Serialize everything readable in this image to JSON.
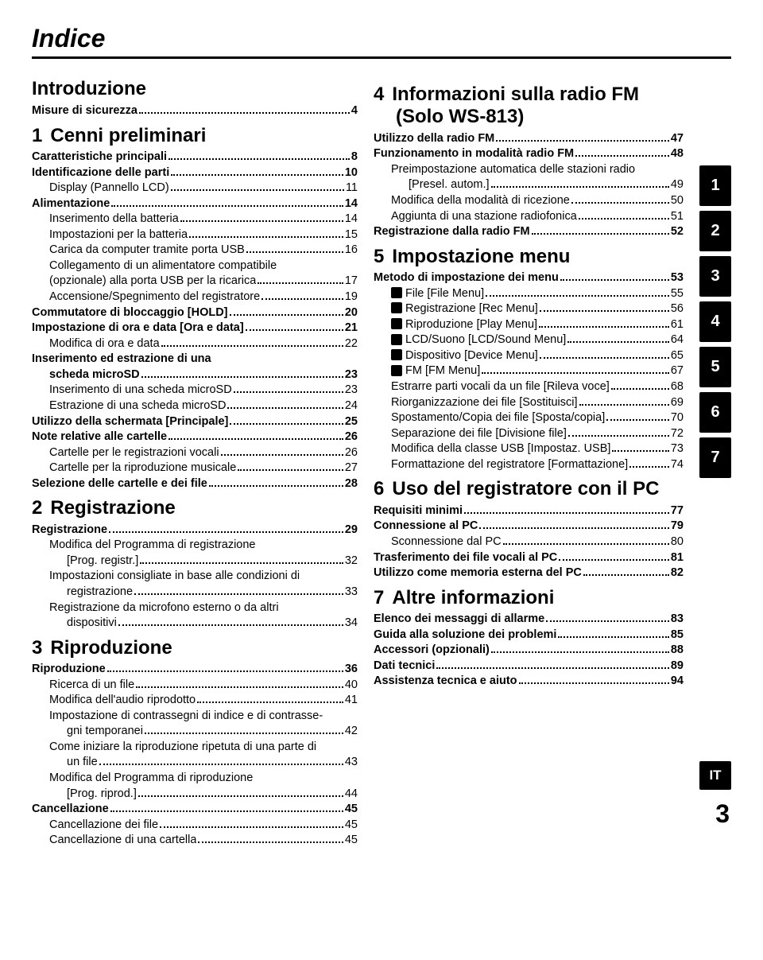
{
  "title": "Indice",
  "pageNumber": "3",
  "tabs": [
    "1",
    "2",
    "3",
    "4",
    "5",
    "6",
    "7"
  ],
  "tabIT": "IT",
  "left": {
    "intro": {
      "title": "Introduzione",
      "items": [
        {
          "label": "Misure di sicurezza",
          "page": "4",
          "bold": true,
          "indent": 1
        }
      ]
    },
    "s1": {
      "num": "1",
      "title": "Cenni preliminari",
      "items": [
        {
          "label": "Caratteristiche principali",
          "page": "8",
          "bold": true,
          "indent": 1
        },
        {
          "label": "Identificazione delle parti",
          "page": "10",
          "bold": true,
          "indent": 1
        },
        {
          "label": "Display (Pannello LCD)",
          "page": "11",
          "indent": 2
        },
        {
          "label": "Alimentazione",
          "page": "14",
          "bold": true,
          "indent": 1
        },
        {
          "label": "Inserimento della batteria",
          "page": "14",
          "indent": 2
        },
        {
          "label": "Impostazioni per la batteria",
          "page": "15",
          "indent": 2
        },
        {
          "label": "Carica da computer tramite porta USB",
          "page": "16",
          "indent": 2
        },
        {
          "multiline": true,
          "first": "Collegamento di un alimentatore compatibile",
          "second": "(opzionale) alla porta USB per la ricarica",
          "page": "17",
          "indent": 2
        },
        {
          "label": "Accensione/Spegnimento del registratore",
          "page": "19",
          "indent": 2
        },
        {
          "label": "Commutatore di bloccaggio [HOLD]",
          "page": "20",
          "bold": true,
          "indent": 1
        },
        {
          "label": "Impostazione di ora e data [Ora e data]",
          "page": "21",
          "bold": true,
          "indent": 1
        },
        {
          "label": "Modifica di ora e data",
          "page": "22",
          "indent": 2
        },
        {
          "multiline": true,
          "first": "Inserimento ed estrazione di una",
          "second": "scheda microSD",
          "page": "23",
          "bold": true,
          "indent": 1,
          "secondIndent": 2
        },
        {
          "label": "Inserimento di una scheda microSD",
          "page": "23",
          "indent": 2
        },
        {
          "label": "Estrazione di una scheda microSD",
          "page": "24",
          "indent": 2
        },
        {
          "label": "Utilizzo della schermata [Principale]",
          "page": "25",
          "bold": true,
          "indent": 1
        },
        {
          "label": "Note relative alle cartelle",
          "page": "26",
          "bold": true,
          "indent": 1
        },
        {
          "label": "Cartelle per le registrazioni vocali",
          "page": "26",
          "indent": 2
        },
        {
          "label": "Cartelle per la riproduzione musicale",
          "page": "27",
          "indent": 2
        },
        {
          "label": "Selezione delle cartelle e dei file",
          "page": "28",
          "bold": true,
          "indent": 1
        }
      ]
    },
    "s2": {
      "num": "2",
      "title": "Registrazione",
      "items": [
        {
          "label": "Registrazione",
          "page": "29",
          "bold": true,
          "indent": 1
        },
        {
          "multiline": true,
          "first": "Modifica del Programma di registrazione",
          "second": "[Prog. registr.]",
          "page": "32",
          "indent": 2,
          "secondIndent": 3
        },
        {
          "multiline": true,
          "first": "Impostazioni consigliate in base alle condizioni di",
          "second": "registrazione",
          "page": "33",
          "indent": 2,
          "secondIndent": 3
        },
        {
          "multiline": true,
          "first": "Registrazione da microfono esterno o da altri",
          "second": "dispositivi",
          "page": "34",
          "indent": 2,
          "secondIndent": 3
        }
      ]
    },
    "s3": {
      "num": "3",
      "title": "Riproduzione",
      "items": [
        {
          "label": "Riproduzione",
          "page": "36",
          "bold": true,
          "indent": 1
        },
        {
          "label": "Ricerca di un file",
          "page": "40",
          "indent": 2
        },
        {
          "label": "Modifica dell'audio riprodotto",
          "page": "41",
          "indent": 2
        },
        {
          "multiline": true,
          "first": "Impostazione di contrassegni di indice e di contrasse-",
          "second": "gni temporanei",
          "page": "42",
          "indent": 2,
          "secondIndent": 3
        },
        {
          "multiline": true,
          "first": "Come iniziare la riproduzione ripetuta di una parte di",
          "second": "un file",
          "page": "43",
          "indent": 2,
          "secondIndent": 3
        },
        {
          "multiline": true,
          "first": "Modifica del Programma di riproduzione",
          "second": "[Prog. riprod.]",
          "page": "44",
          "indent": 2,
          "secondIndent": 3
        },
        {
          "label": "Cancellazione",
          "page": "45",
          "bold": true,
          "indent": 1
        },
        {
          "label": "Cancellazione dei file",
          "page": "45",
          "indent": 2
        },
        {
          "label": "Cancellazione di una cartella",
          "page": "45",
          "indent": 2
        }
      ]
    }
  },
  "right": {
    "s4": {
      "num": "4",
      "title": "Informazioni sulla radio FM",
      "subtitle": "(Solo WS-813)",
      "items": [
        {
          "label": "Utilizzo della radio FM",
          "page": "47",
          "bold": true,
          "indent": 1
        },
        {
          "label": "Funzionamento in modalità radio FM",
          "page": "48",
          "bold": true,
          "indent": 1
        },
        {
          "multiline": true,
          "first": "Preimpostazione automatica delle stazioni radio",
          "second": "[Presel. autom.]",
          "page": "49",
          "indent": 2,
          "secondIndent": 3
        },
        {
          "label": "Modifica della modalità di ricezione",
          "page": "50",
          "indent": 2
        },
        {
          "label": "Aggiunta di una stazione radiofonica",
          "page": "51",
          "indent": 2
        },
        {
          "label": "Registrazione dalla radio FM",
          "page": "52",
          "bold": true,
          "indent": 1
        }
      ]
    },
    "s5": {
      "num": "5",
      "title": "Impostazione menu",
      "items": [
        {
          "label": "Metodo di impostazione dei menu",
          "page": "53",
          "bold": true,
          "indent": 1
        },
        {
          "label": "File [File Menu]",
          "page": "55",
          "indent": 2,
          "icon": true
        },
        {
          "label": "Registrazione [Rec Menu]",
          "page": "56",
          "indent": 2,
          "icon": true
        },
        {
          "label": "Riproduzione [Play Menu]",
          "page": "61",
          "indent": 2,
          "icon": true
        },
        {
          "label": "LCD/Suono [LCD/Sound Menu]",
          "page": "64",
          "indent": 2,
          "icon": true
        },
        {
          "label": "Dispositivo [Device Menu]",
          "page": "65",
          "indent": 2,
          "icon": true
        },
        {
          "label": "FM [FM Menu]",
          "page": "67",
          "indent": 2,
          "icon": true
        },
        {
          "label": "Estrarre parti vocali da un file [Rileva voce]",
          "page": "68",
          "indent": 2
        },
        {
          "label": "Riorganizzazione dei file [Sostituisci]",
          "page": "69",
          "indent": 2
        },
        {
          "label": "Spostamento/Copia dei file [Sposta/copia]",
          "page": "70",
          "indent": 2
        },
        {
          "label": "Separazione dei file [Divisione file]",
          "page": "72",
          "indent": 2
        },
        {
          "label": "Modifica della classe USB [Impostaz. USB]",
          "page": "73",
          "indent": 2
        },
        {
          "label": "Formattazione del registratore [Formattazione]",
          "page": "74",
          "indent": 2
        }
      ]
    },
    "s6": {
      "num": "6",
      "title": "Uso del registratore con il PC",
      "items": [
        {
          "label": "Requisiti minimi",
          "page": "77",
          "bold": true,
          "indent": 1
        },
        {
          "label": "Connessione al PC",
          "page": "79",
          "bold": true,
          "indent": 1
        },
        {
          "label": "Sconnessione dal PC",
          "page": "80",
          "indent": 2
        },
        {
          "label": "Trasferimento dei file vocali al PC",
          "page": "81",
          "bold": true,
          "indent": 1
        },
        {
          "label": "Utilizzo come memoria esterna del PC",
          "page": "82",
          "bold": true,
          "indent": 1
        }
      ]
    },
    "s7": {
      "num": "7",
      "title": "Altre informazioni",
      "items": [
        {
          "label": "Elenco dei messaggi di allarme",
          "page": "83",
          "bold": true,
          "indent": 1
        },
        {
          "label": "Guida alla soluzione dei problemi",
          "page": "85",
          "bold": true,
          "indent": 1
        },
        {
          "label": "Accessori (opzionali)",
          "page": "88",
          "bold": true,
          "indent": 1
        },
        {
          "label": "Dati tecnici",
          "page": "89",
          "bold": true,
          "indent": 1
        },
        {
          "label": "Assistenza tecnica e aiuto",
          "page": "94",
          "bold": true,
          "indent": 1
        }
      ]
    }
  }
}
